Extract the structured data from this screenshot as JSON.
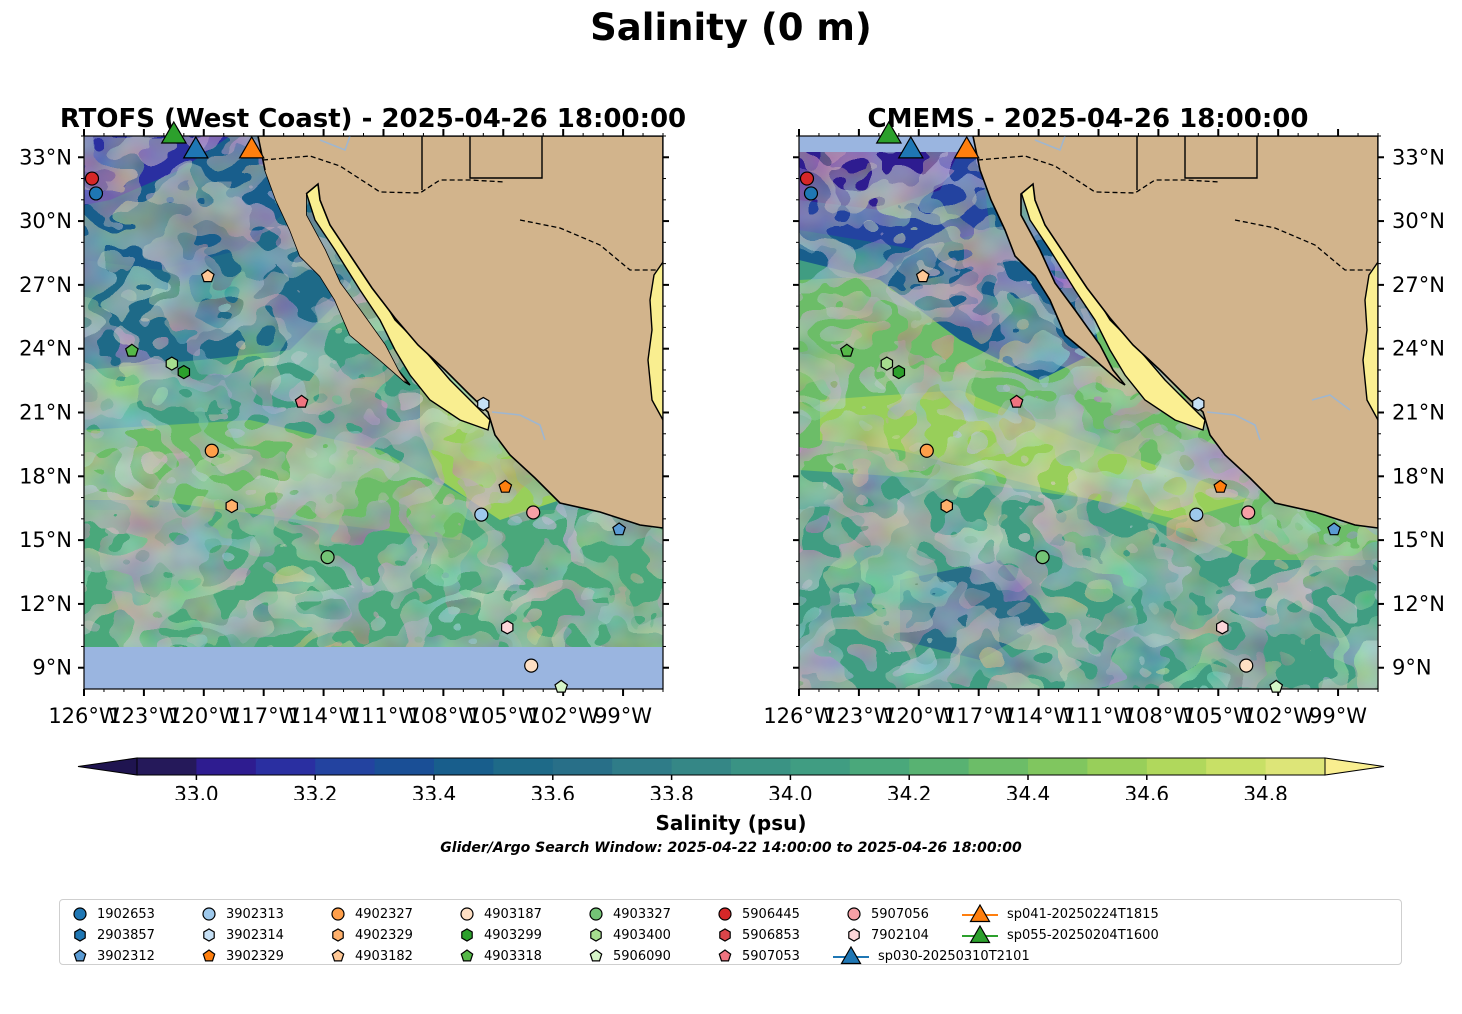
{
  "title": "Salinity (0 m)",
  "panels": [
    {
      "title": "RTOFS (West Coast) - 2025-04-26 18:00:00",
      "variant": "rtofs",
      "lat_labels": "left"
    },
    {
      "title": "CMEMS - 2025-04-26 18:00:00",
      "variant": "cmems",
      "lat_labels": "right"
    }
  ],
  "map_extent": {
    "lon": [
      -126,
      -97
    ],
    "lat": [
      8,
      34
    ]
  },
  "lat_ticks": [
    "33°N",
    "30°N",
    "27°N",
    "24°N",
    "21°N",
    "18°N",
    "15°N",
    "12°N",
    "9°N"
  ],
  "lat_tick_values": [
    33,
    30,
    27,
    24,
    21,
    18,
    15,
    12,
    9
  ],
  "lon_ticks": [
    "126°W",
    "123°W",
    "120°W",
    "117°W",
    "114°W",
    "111°W",
    "108°W",
    "105°W",
    "102°W",
    "99°W"
  ],
  "lon_tick_values": [
    -126,
    -123,
    -120,
    -117,
    -114,
    -111,
    -108,
    -105,
    -102,
    -99
  ],
  "colorbar": {
    "label": "Salinity (psu)",
    "min": 32.9,
    "max": 34.9,
    "step": 0.1,
    "ticks": [
      "33.0",
      "33.2",
      "33.4",
      "33.6",
      "33.8",
      "34.0",
      "34.2",
      "34.4",
      "34.6",
      "34.8"
    ],
    "tick_values": [
      33.0,
      33.2,
      33.4,
      33.6,
      33.8,
      34.0,
      34.2,
      34.4,
      34.6,
      34.8
    ],
    "extend": "both",
    "colors": [
      "#25195a",
      "#2e1c90",
      "#2a2fa1",
      "#2343a0",
      "#1a4f96",
      "#185e8c",
      "#1e6a88",
      "#286f88",
      "#2f7c88",
      "#358786",
      "#3a9384",
      "#409d82",
      "#4aa87b",
      "#58b272",
      "#6cbd68",
      "#80c65f",
      "#98cf5a",
      "#b0d85c",
      "#c8e066",
      "#dde578"
    ],
    "over_color": "#f9ee90",
    "under_color": "#1f1450"
  },
  "colors": {
    "land": "#d2b48c",
    "ocean_fill": "#9ab5e0",
    "rivers": "#9fb6cf",
    "gulf_rtofs": "#f9ee90",
    "gulf_cmems": "#fbef92"
  },
  "search_window": "Glider/Argo Search Window: 2025-04-22 14:00:00 to 2025-04-26 18:00:00",
  "platforms": [
    {
      "id": "1902653",
      "marker": "circle",
      "color": "#1f77b4",
      "lon": -125.4,
      "lat": 31.3
    },
    {
      "id": "2903857",
      "marker": "hexagon",
      "color": "#1f77b4"
    },
    {
      "id": "3902312",
      "marker": "pentagon",
      "color": "#5a9bd4",
      "lon": -99.2,
      "lat": 15.5
    },
    {
      "id": "3902313",
      "marker": "circle",
      "color": "#9ec9ec",
      "lon": -106.1,
      "lat": 16.2
    },
    {
      "id": "3902314",
      "marker": "hexagon",
      "color": "#c6e0f5",
      "lon": -106.0,
      "lat": 21.4
    },
    {
      "id": "3902329",
      "marker": "pentagon",
      "color": "#ff7f0e",
      "lon": -104.9,
      "lat": 17.5
    },
    {
      "id": "4902327",
      "marker": "circle",
      "color": "#ff9f4a",
      "lon": -119.6,
      "lat": 19.2
    },
    {
      "id": "4902329",
      "marker": "hexagon",
      "color": "#ffb06b",
      "lon": -118.6,
      "lat": 16.6
    },
    {
      "id": "4903182",
      "marker": "pentagon",
      "color": "#ffc896",
      "lon": -119.8,
      "lat": 27.4
    },
    {
      "id": "4903187",
      "marker": "circle",
      "color": "#ffe0c4",
      "lon": -103.6,
      "lat": 9.1
    },
    {
      "id": "4903299",
      "marker": "hexagon",
      "color": "#2ca02c",
      "lon": -121.0,
      "lat": 22.9
    },
    {
      "id": "4903318",
      "marker": "pentagon",
      "color": "#55b848",
      "lon": -123.6,
      "lat": 23.9
    },
    {
      "id": "4903327",
      "marker": "circle",
      "color": "#74c476",
      "lon": -113.8,
      "lat": 14.2
    },
    {
      "id": "4903400",
      "marker": "hexagon",
      "color": "#a6dd8f",
      "lon": -121.6,
      "lat": 23.3
    },
    {
      "id": "5906090",
      "marker": "pentagon",
      "color": "#d6f5c8",
      "lon": -102.1,
      "lat": 8.1
    },
    {
      "id": "5906445",
      "marker": "circle",
      "color": "#d62728",
      "lon": -125.6,
      "lat": 32.0
    },
    {
      "id": "5906853",
      "marker": "hexagon",
      "color": "#d9454a"
    },
    {
      "id": "5907053",
      "marker": "pentagon",
      "color": "#f07480",
      "lon": -115.1,
      "lat": 21.5
    },
    {
      "id": "5907056",
      "marker": "circle",
      "color": "#f6a0a6",
      "lon": -103.5,
      "lat": 16.3
    },
    {
      "id": "7902104",
      "marker": "hexagon",
      "color": "#fcd6d9",
      "lon": -104.8,
      "lat": 10.9
    },
    {
      "id": "sp030-20250310T2101",
      "marker": "triangle",
      "color": "#1f77b4",
      "lon": -120.4,
      "lat": 33.3
    },
    {
      "id": "sp041-20250224T1815",
      "marker": "triangle",
      "color": "#ff7f0e",
      "lon": -117.6,
      "lat": 33.3
    },
    {
      "id": "sp055-20250204T1600",
      "marker": "triangle",
      "color": "#2ca02c",
      "lon": -121.5,
      "lat": 34.0
    }
  ]
}
